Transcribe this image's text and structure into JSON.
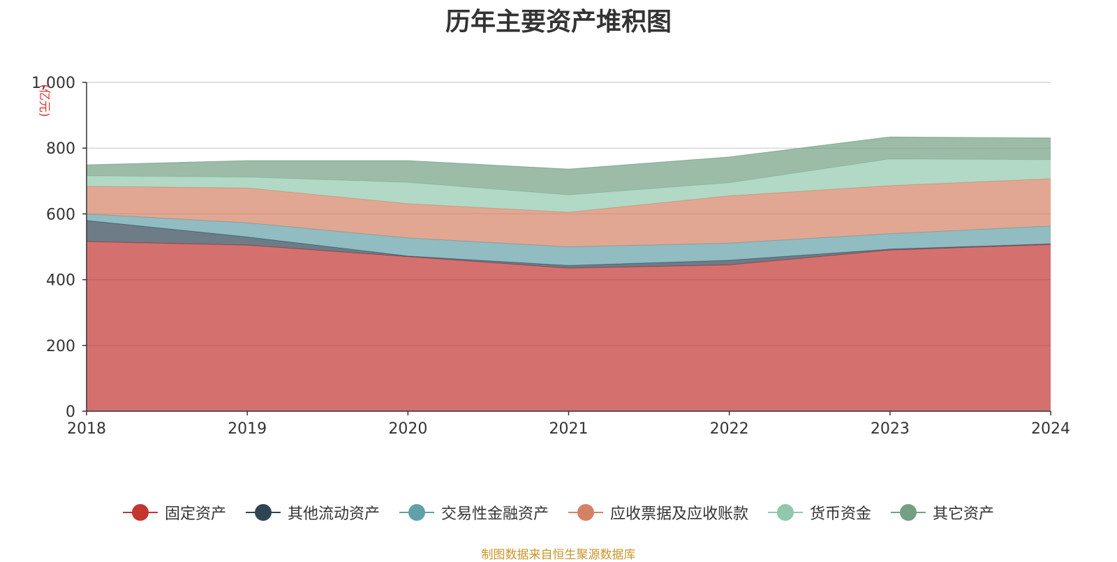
{
  "chart_data": {
    "type": "area",
    "stacked": true,
    "title": "历年主要资产堆积图",
    "ylabel": "(亿元)",
    "xlabel": "",
    "x": [
      "2018",
      "2019",
      "2020",
      "2021",
      "2022",
      "2023",
      "2024"
    ],
    "ylim": [
      0,
      1000
    ],
    "yticks": [
      0,
      200,
      400,
      600,
      800,
      1000
    ],
    "ytick_labels": [
      "0",
      "200",
      "400",
      "600",
      "800",
      "1,000"
    ],
    "grid": true,
    "legend_position": "bottom",
    "series": [
      {
        "name": "固定资产",
        "color": "#c23531",
        "values": [
          516,
          505,
          470,
          435,
          445,
          490,
          507
        ]
      },
      {
        "name": "其他流动资产",
        "color": "#2f4554",
        "values": [
          64,
          25,
          2,
          8,
          14,
          3,
          2
        ]
      },
      {
        "name": "交易性金融资产",
        "color": "#61a0a8",
        "values": [
          20,
          43,
          55,
          57,
          52,
          47,
          54
        ]
      },
      {
        "name": "应收票据及应收账款",
        "color": "#d48265",
        "values": [
          84,
          106,
          104,
          105,
          144,
          146,
          144
        ]
      },
      {
        "name": "货币资金",
        "color": "#91c7ae",
        "values": [
          32,
          33,
          65,
          53,
          40,
          81,
          58
        ]
      },
      {
        "name": "其它资产",
        "color": "#749f83",
        "values": [
          33,
          50,
          66,
          78,
          78,
          67,
          66
        ]
      }
    ]
  },
  "footer": "制图数据来自恒生聚源数据库"
}
